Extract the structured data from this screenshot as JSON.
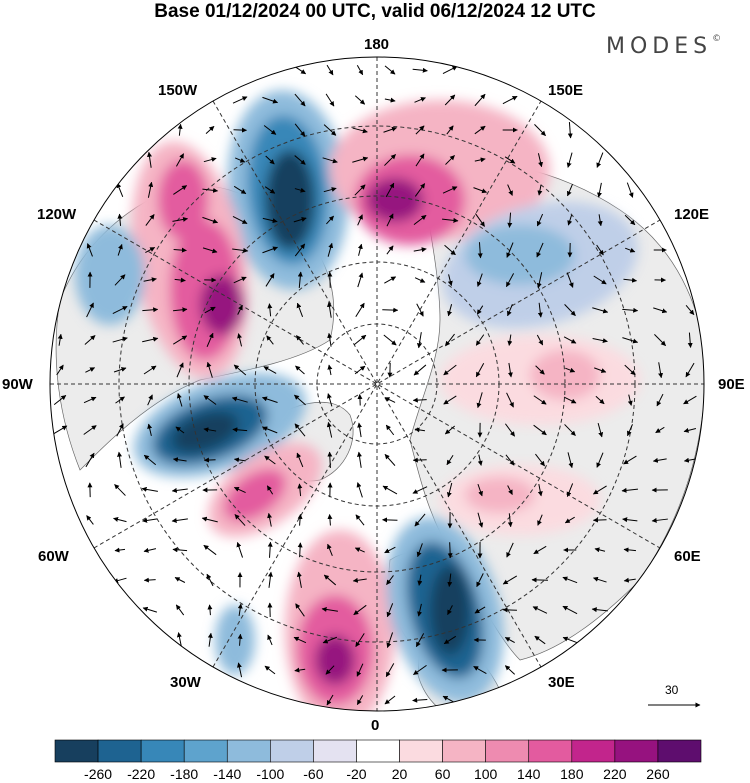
{
  "title": "Base 01/12/2024 00 UTC, valid 06/12/2024 12 UTC",
  "logo": {
    "text": "MODES",
    "mark": "©"
  },
  "longitude_labels": {
    "lon_180": "180",
    "lon_150w": "150W",
    "lon_150e": "150E",
    "lon_120w": "120W",
    "lon_120e": "120E",
    "lon_90w": "90W",
    "lon_90e": "90E",
    "lon_60w": "60W",
    "lon_60e": "60E",
    "lon_30w": "30W",
    "lon_30e": "30E",
    "lon_0": "0"
  },
  "reference_vector": {
    "value": "30"
  },
  "colorbar": {
    "colors": [
      "#173f5e",
      "#1e6391",
      "#3787b8",
      "#5ea3cd",
      "#8ebbdc",
      "#bfcfe8",
      "#e4e2f1",
      "#ffffff",
      "#fbdbe0",
      "#f5b4c4",
      "#ee8bb0",
      "#e35b9f",
      "#c2258c",
      "#96127f",
      "#5e0d6e"
    ],
    "labels": [
      "-260",
      "-220",
      "-180",
      "-140",
      "-100",
      "-60",
      "-20",
      "20",
      "60",
      "100",
      "140",
      "180",
      "220",
      "260"
    ]
  },
  "colors": {
    "land": "#ececec",
    "ocean": "#ffffff",
    "grid": "#333333",
    "coast": "#555555"
  }
}
